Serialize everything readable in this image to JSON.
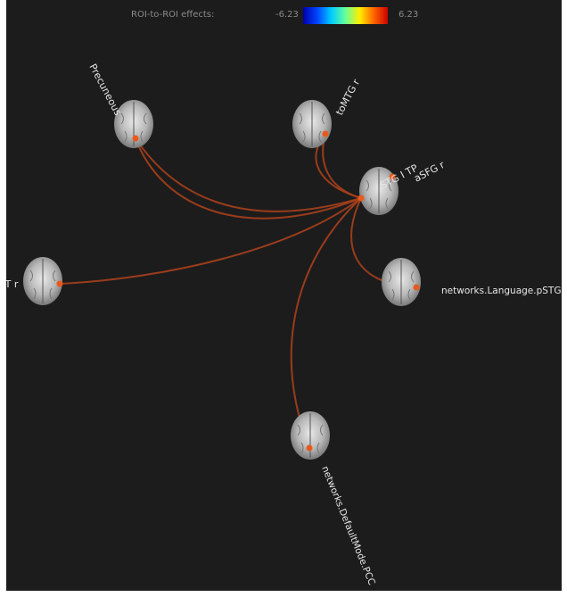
{
  "colorbar": {
    "title": "ROI-to-ROI effects:",
    "min": "-6.23",
    "max": "6.23",
    "gradient": [
      "#0000aa",
      "#0044ff",
      "#00ccff",
      "#66ff99",
      "#ffee00",
      "#ff6600",
      "#cc0000"
    ]
  },
  "edge_color": "#a8401c",
  "node_color": "#e85a1c",
  "nodes": [
    {
      "id": "precuneous",
      "label": "Precuneous"
    },
    {
      "id": "tomtg-r",
      "label": "toMTG r"
    },
    {
      "id": "stg-tp",
      "label": "STG I TP"
    },
    {
      "id": "asfg-r",
      "label": "aSFG r"
    },
    {
      "id": "pt-r",
      "label": "PT r"
    },
    {
      "id": "language-pstg",
      "label": "networks.Language.pSTG"
    },
    {
      "id": "defaultmode-pcc",
      "label": "networks.DefaultMode.PCC"
    }
  ]
}
